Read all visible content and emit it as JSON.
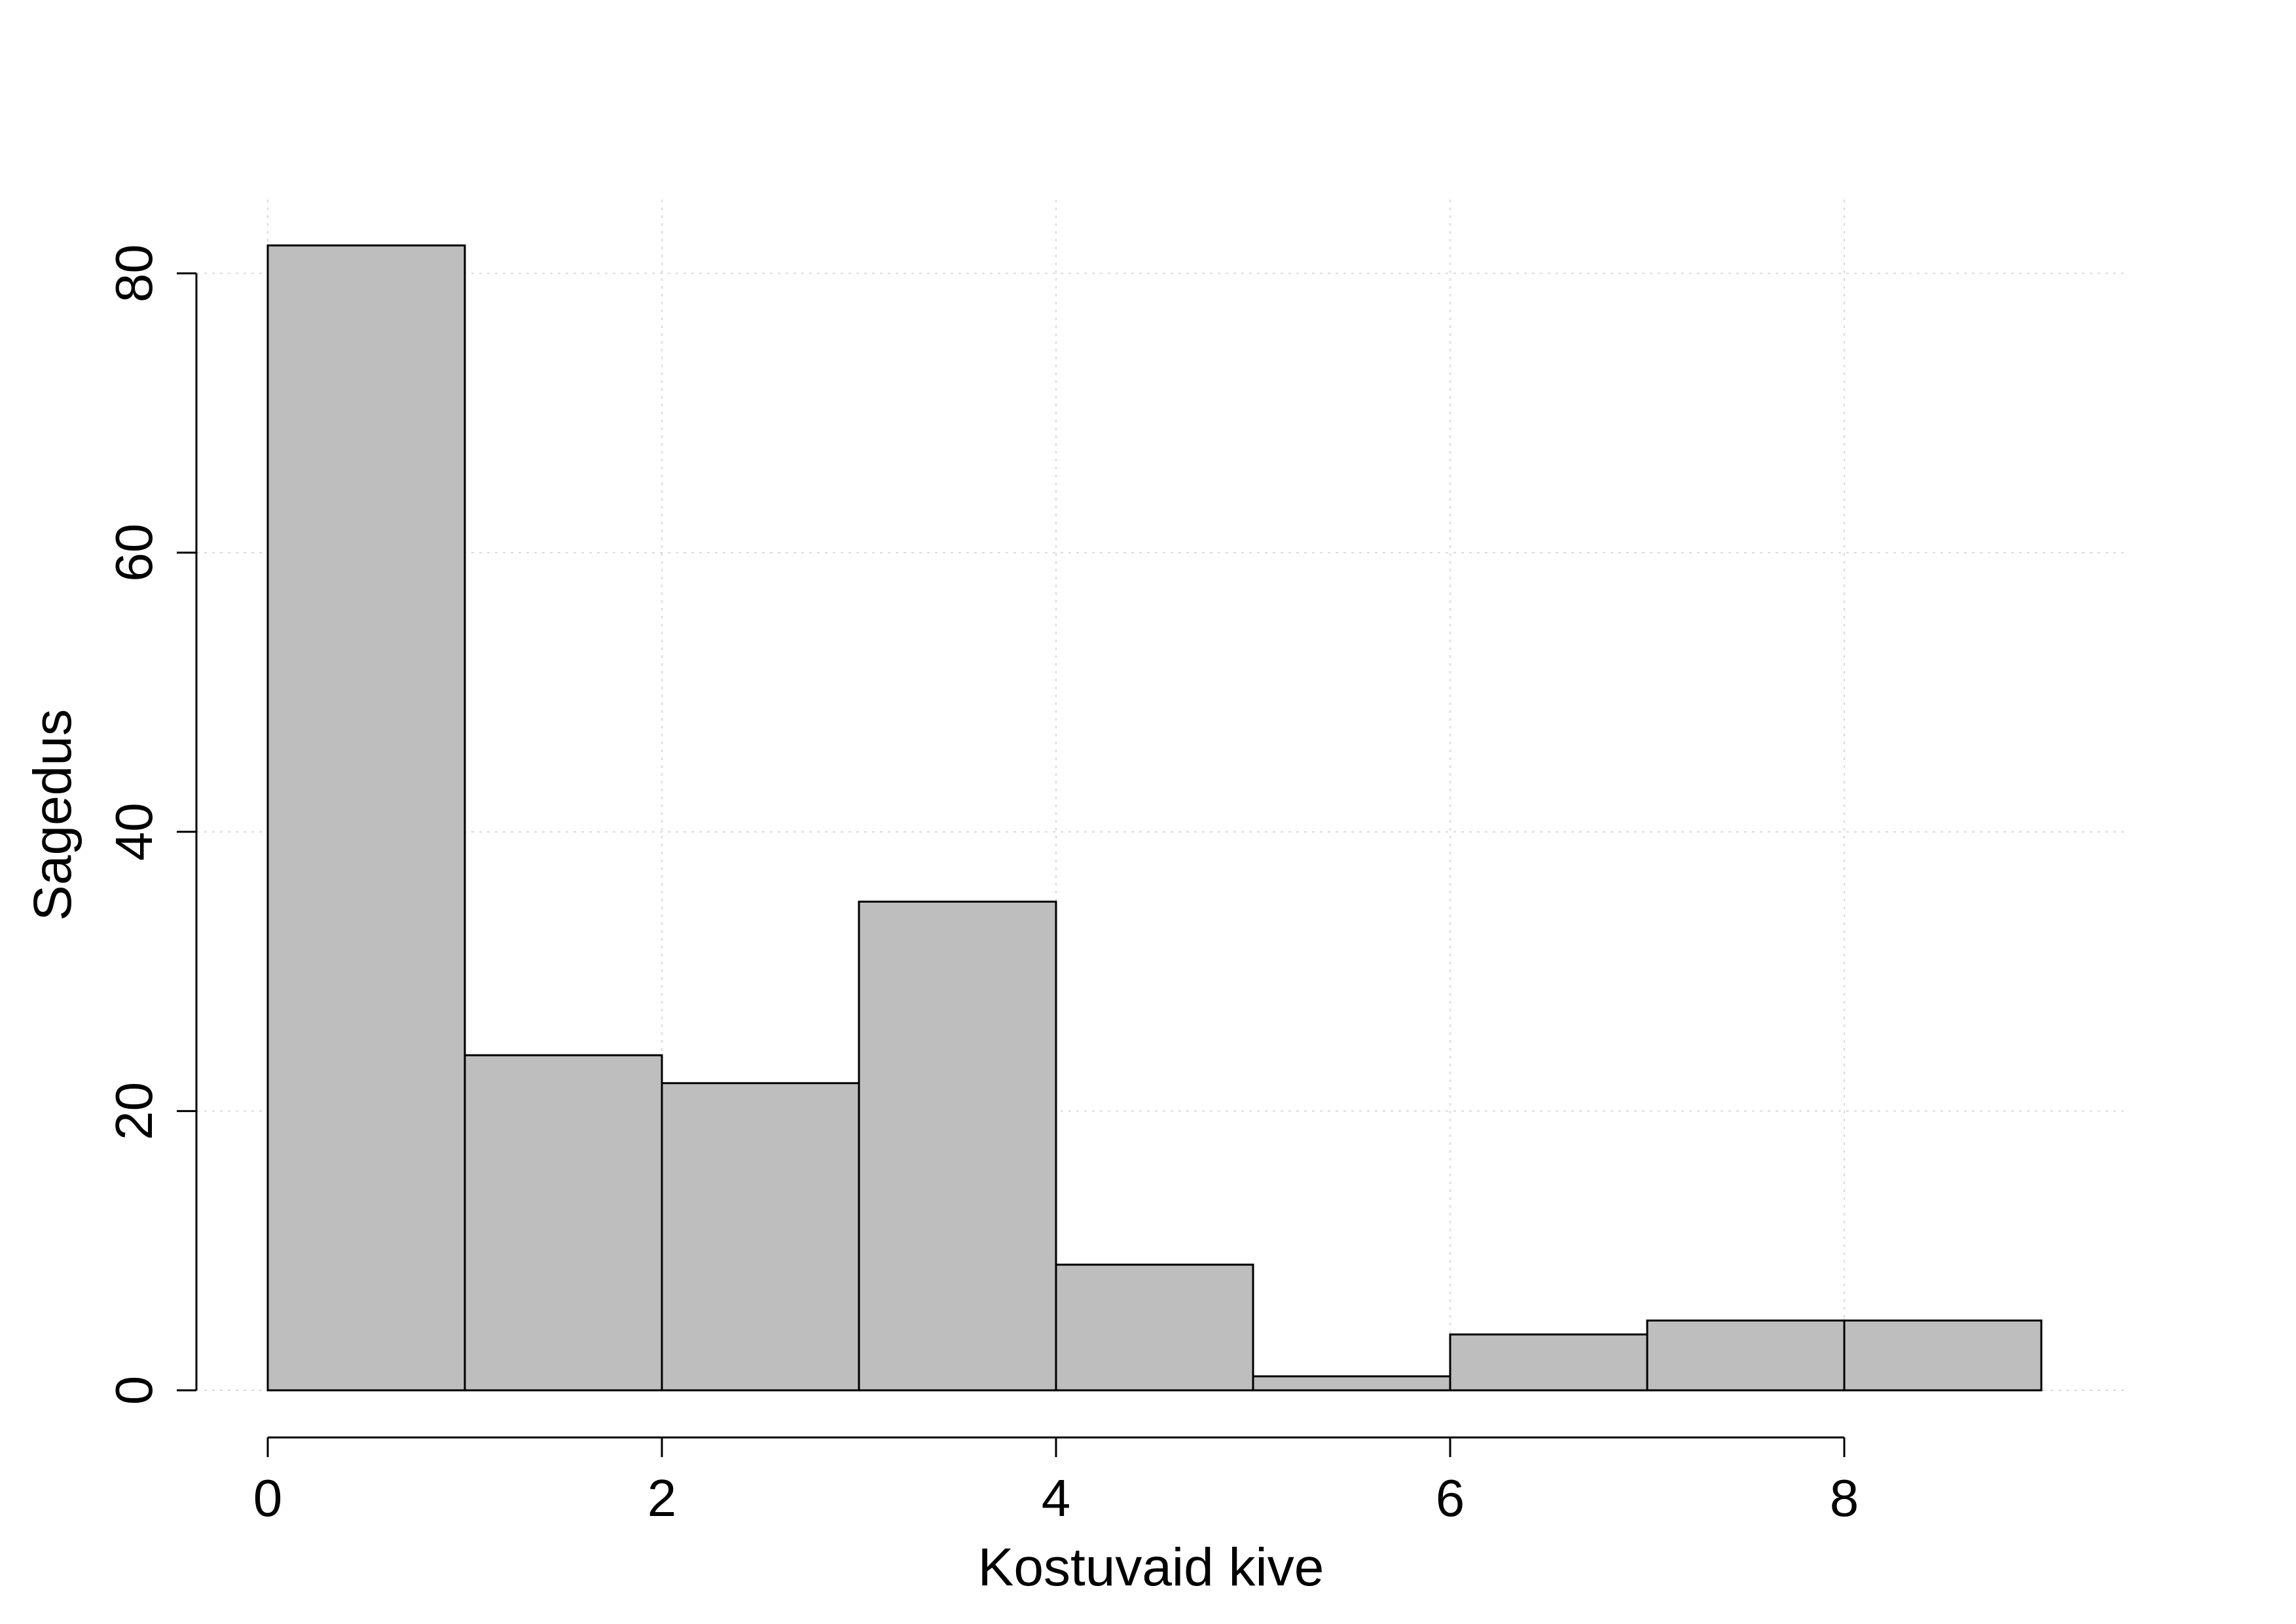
{
  "chart_data": {
    "type": "bar",
    "title": "",
    "xlabel": "Kostuvaid kive",
    "ylabel": "Sagedus",
    "bins": [
      [
        0,
        1
      ],
      [
        1,
        2
      ],
      [
        2,
        3
      ],
      [
        3,
        4
      ],
      [
        4,
        5
      ],
      [
        5,
        6
      ],
      [
        6,
        7
      ],
      [
        7,
        8
      ],
      [
        8,
        9
      ]
    ],
    "values": [
      82,
      24,
      22,
      35,
      9,
      1,
      4,
      5,
      5
    ],
    "xlim": [
      0,
      9
    ],
    "ylim": [
      0,
      85
    ],
    "xticks": [
      0,
      2,
      4,
      6,
      8
    ],
    "yticks": [
      0,
      20,
      40,
      60,
      80
    ],
    "xtick_labels": [
      "0",
      "2",
      "4",
      "6",
      "8"
    ],
    "ytick_labels": [
      "0",
      "20",
      "40",
      "60",
      "80"
    ],
    "grid": true,
    "legend": "none",
    "colors": {
      "bar_fill": "#bebebe",
      "bar_edge": "#000000",
      "grid": "#d9d9d9",
      "axis": "#000000",
      "background": "#ffffff"
    }
  }
}
